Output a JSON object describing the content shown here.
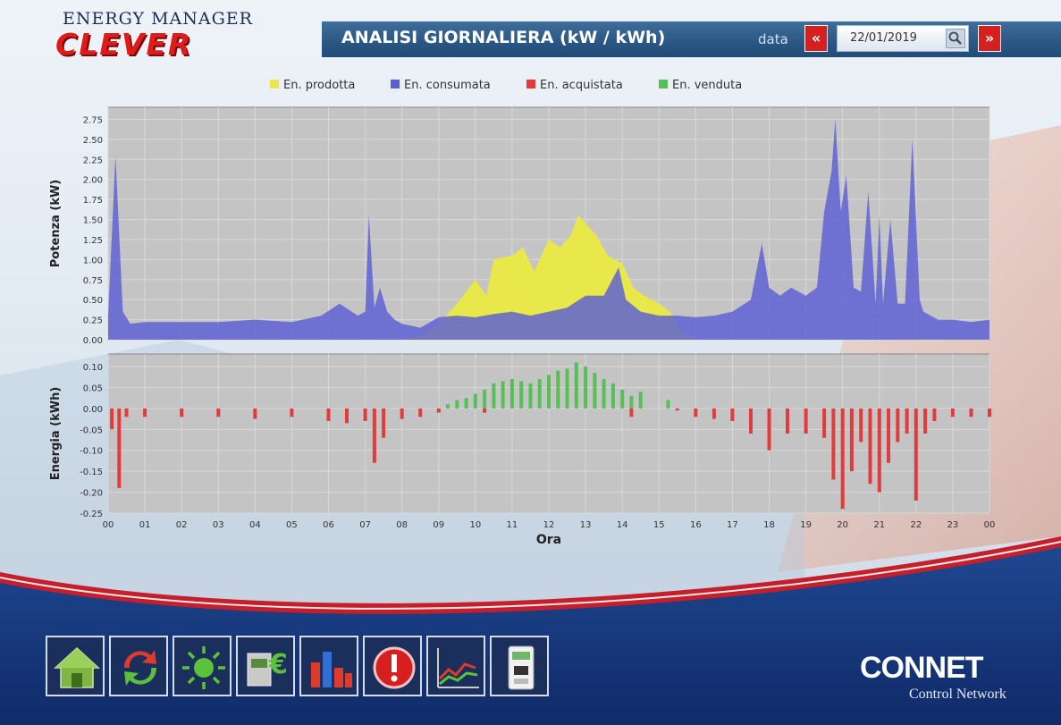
{
  "header": {
    "logo_top": "ENERGY MANAGER",
    "logo_main": "CLEVER",
    "title": "ANALISI GIORNALIERA (kW / kWh)",
    "date_label": "data",
    "date_value": "22/01/2019",
    "prev_label": "«",
    "next_label": "»"
  },
  "colors": {
    "prodotta": "#e8e84a",
    "consumata": "#5b5ed6",
    "acquistata": "#e23b3b",
    "venduta": "#55c055",
    "plot_bg": "#c4c4c4",
    "accent_red": "#d6201f",
    "footer_blue": "#16357a"
  },
  "chart_data": [
    {
      "type": "area",
      "title": "",
      "ylabel": "Potenza (kW)",
      "xlabel": "",
      "ylim": [
        0,
        2.9
      ],
      "yticks": [
        "0.00",
        "0.25",
        "0.50",
        "0.75",
        "1.00",
        "1.25",
        "1.50",
        "1.75",
        "2.00",
        "2.25",
        "2.50",
        "2.75"
      ],
      "grid": true,
      "legend": "top-center",
      "series": [
        {
          "name": "En. prodotta",
          "x": [
            0,
            8.0,
            8.5,
            9.0,
            9.5,
            10.0,
            10.3,
            10.5,
            11.0,
            11.3,
            11.6,
            12.0,
            12.3,
            12.6,
            12.8,
            13.0,
            13.3,
            13.6,
            14.0,
            14.3,
            14.6,
            15.0,
            15.3,
            15.6,
            16.0,
            24
          ],
          "y": [
            0,
            0,
            0.05,
            0.2,
            0.45,
            0.75,
            0.55,
            1.0,
            1.05,
            1.15,
            0.85,
            1.25,
            1.15,
            1.3,
            1.55,
            1.45,
            1.3,
            1.05,
            0.95,
            0.65,
            0.55,
            0.45,
            0.35,
            0.12,
            0,
            0
          ]
        },
        {
          "name": "En. consumata",
          "x": [
            0,
            0.2,
            0.4,
            0.6,
            1,
            2,
            3,
            4,
            5,
            5.8,
            6.3,
            6.8,
            7.0,
            7.1,
            7.25,
            7.4,
            7.6,
            7.8,
            8,
            8.5,
            9,
            9.5,
            10,
            10.5,
            11,
            11.5,
            12,
            12.5,
            13,
            13.5,
            13.9,
            14.1,
            14.5,
            15,
            15.5,
            16,
            16.5,
            17,
            17.5,
            17.8,
            18,
            18.3,
            18.6,
            19,
            19.3,
            19.5,
            19.7,
            19.8,
            19.95,
            20.1,
            20.3,
            20.5,
            20.7,
            20.9,
            21.0,
            21.1,
            21.3,
            21.5,
            21.7,
            21.9,
            22.1,
            22.2,
            22.4,
            22.6,
            23,
            23.5,
            24
          ],
          "y": [
            0.3,
            2.3,
            0.35,
            0.2,
            0.22,
            0.22,
            0.22,
            0.25,
            0.22,
            0.3,
            0.45,
            0.3,
            0.35,
            1.55,
            0.4,
            0.65,
            0.35,
            0.25,
            0.2,
            0.15,
            0.28,
            0.3,
            0.28,
            0.32,
            0.35,
            0.3,
            0.35,
            0.4,
            0.55,
            0.55,
            0.9,
            0.5,
            0.35,
            0.3,
            0.3,
            0.28,
            0.3,
            0.35,
            0.5,
            1.2,
            0.65,
            0.55,
            0.65,
            0.55,
            0.65,
            1.6,
            2.1,
            2.75,
            1.6,
            2.05,
            0.65,
            0.6,
            1.85,
            0.45,
            1.55,
            0.45,
            1.5,
            0.45,
            0.45,
            2.5,
            0.5,
            0.35,
            0.3,
            0.25,
            0.25,
            0.22,
            0.25
          ]
        }
      ]
    },
    {
      "type": "bar",
      "title": "",
      "ylabel": "Energia (kWh)",
      "xlabel": "Ora",
      "ylim": [
        -0.25,
        0.13
      ],
      "yticks": [
        "0.10",
        "0.05",
        "0.00",
        "-0.05",
        "-0.10",
        "-0.15",
        "-0.20",
        "-0.25"
      ],
      "x_tick_labels": [
        "00",
        "01",
        "02",
        "03",
        "04",
        "05",
        "06",
        "07",
        "08",
        "09",
        "10",
        "11",
        "12",
        "13",
        "14",
        "15",
        "16",
        "17",
        "18",
        "19",
        "20",
        "21",
        "22",
        "23",
        "00"
      ],
      "grid": true,
      "series": [
        {
          "name": "En. venduta",
          "x": [
            9.25,
            9.5,
            9.75,
            10.0,
            10.25,
            10.5,
            10.75,
            11.0,
            11.25,
            11.5,
            11.75,
            12.0,
            12.25,
            12.5,
            12.75,
            13.0,
            13.25,
            13.5,
            13.75,
            14.0,
            14.25,
            14.5,
            15.25
          ],
          "y": [
            0.01,
            0.02,
            0.025,
            0.035,
            0.045,
            0.06,
            0.065,
            0.07,
            0.065,
            0.06,
            0.07,
            0.08,
            0.09,
            0.095,
            0.11,
            0.1,
            0.085,
            0.07,
            0.06,
            0.045,
            0.03,
            0.04,
            0.02
          ]
        },
        {
          "name": "En. acquistata",
          "x": [
            0.1,
            0.3,
            0.5,
            1,
            2,
            3,
            4,
            5,
            6,
            6.5,
            7.0,
            7.25,
            7.5,
            8,
            8.5,
            9,
            10.25,
            14.25,
            15.5,
            16,
            16.5,
            17,
            17.5,
            18,
            18.5,
            19,
            19.5,
            19.75,
            20,
            20.25,
            20.5,
            20.75,
            21,
            21.25,
            21.5,
            21.75,
            22.0,
            22.25,
            22.5,
            23,
            23.5,
            24
          ],
          "y": [
            -0.05,
            -0.19,
            -0.02,
            -0.02,
            -0.02,
            -0.02,
            -0.025,
            -0.02,
            -0.03,
            -0.035,
            -0.03,
            -0.13,
            -0.07,
            -0.025,
            -0.02,
            -0.01,
            -0.01,
            -0.02,
            -0.005,
            -0.02,
            -0.025,
            -0.03,
            -0.06,
            -0.1,
            -0.06,
            -0.06,
            -0.07,
            -0.17,
            -0.24,
            -0.15,
            -0.08,
            -0.18,
            -0.2,
            -0.13,
            -0.08,
            -0.06,
            -0.22,
            -0.06,
            -0.03,
            -0.02,
            -0.02,
            -0.02
          ]
        }
      ]
    }
  ],
  "legend": {
    "prodotta": "En. prodotta",
    "consumata": "En. consumata",
    "acquistata": "En. acquistata",
    "venduta": "En. venduta"
  },
  "toolbar": [
    {
      "name": "home-button",
      "icon": "home-icon"
    },
    {
      "name": "refresh-button",
      "icon": "refresh-icon"
    },
    {
      "name": "production-button",
      "icon": "sun-icon"
    },
    {
      "name": "cost-button",
      "icon": "euro-meter-icon"
    },
    {
      "name": "bar-chart-button",
      "icon": "bar-chart-icon"
    },
    {
      "name": "alert-button",
      "icon": "alert-icon"
    },
    {
      "name": "trend-button",
      "icon": "line-chart-icon"
    },
    {
      "name": "meter-button",
      "icon": "meter-icon"
    }
  ],
  "footer": {
    "brand_name": "CONNET",
    "brand_sub": "Control Network"
  }
}
